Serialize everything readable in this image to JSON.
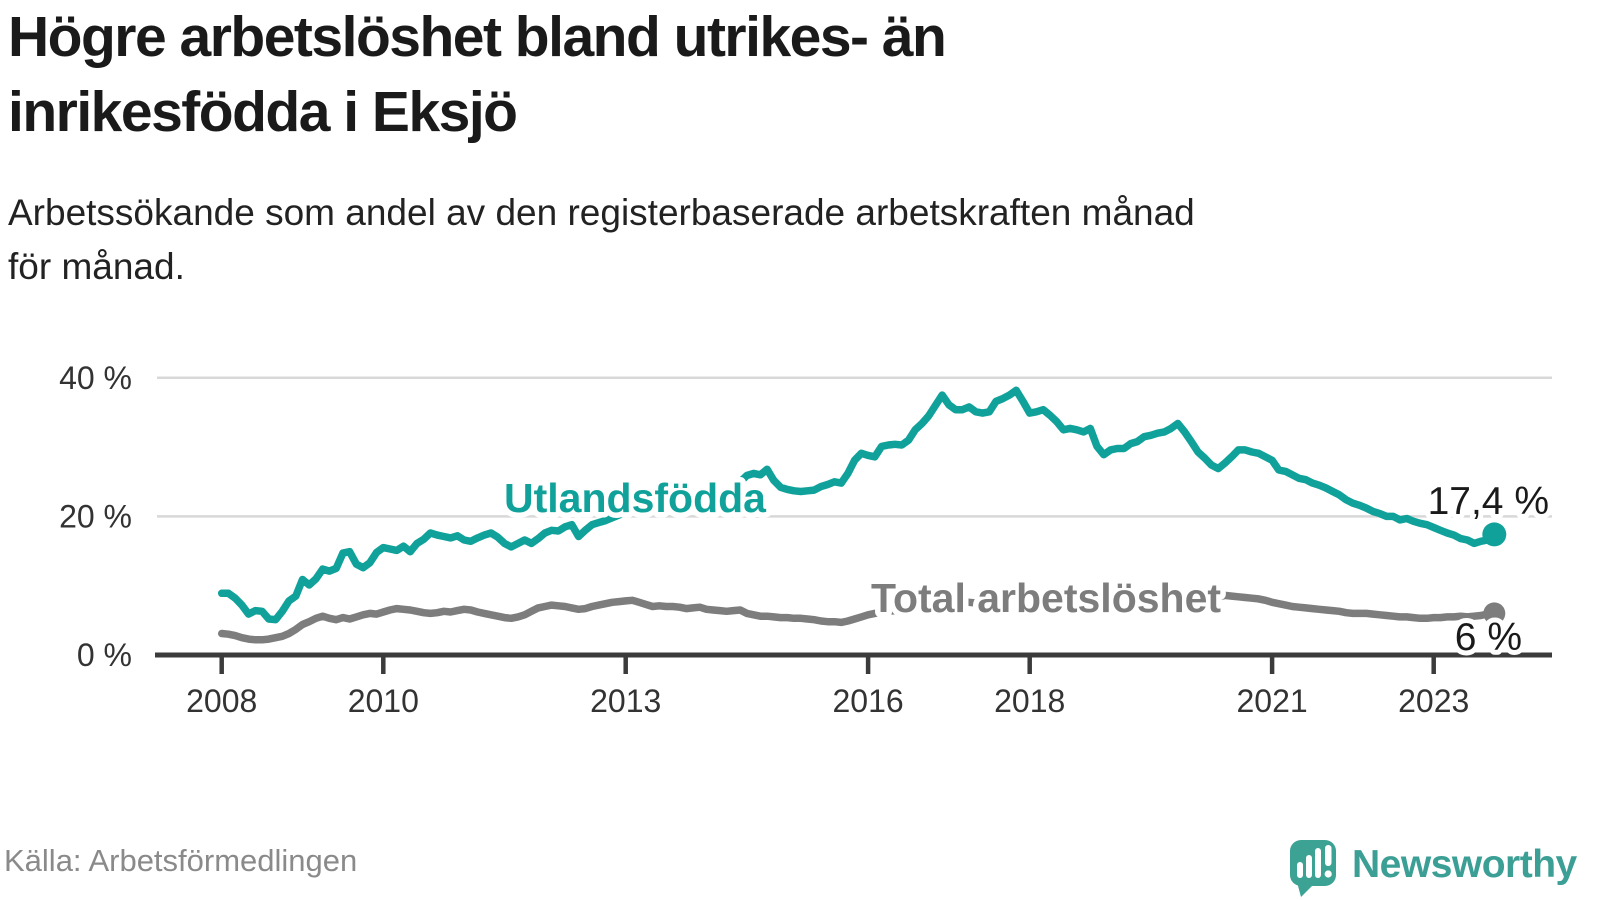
{
  "header": {
    "title": [
      "Högre arbetslöshet bland utrikes- än",
      "inrikesfödda i Eksjö"
    ],
    "subtitle": [
      "Arbetssökande som andel av den registerbaserade arbetskraften månad",
      "för månad."
    ]
  },
  "footer": {
    "source": "Källa: Arbetsförmedlingen",
    "brand": "Newsworthy"
  },
  "colors": {
    "accent_teal": "#10a29a",
    "line_gray": "#7d7d7d",
    "axis": "#3b3b3b",
    "grid": "#d8d8d8",
    "logo_teal": "#3c9f95"
  },
  "chart_data": {
    "type": "line",
    "title": "Högre arbetslöshet bland utrikes- än inrikesfödda i Eksjö",
    "subtitle": "Arbetssökande som andel av den registerbaserade arbetskraften månad för månad.",
    "xlabel": "",
    "ylabel": "",
    "x_start": "2008-01",
    "x_end": "2023-10",
    "x_interval": "monthly",
    "x_ticks": [
      2008,
      2010,
      2013,
      2016,
      2018,
      2021,
      2023
    ],
    "y_ticks": [
      {
        "value": 0,
        "label": "0 %"
      },
      {
        "value": 20,
        "label": "20 %"
      },
      {
        "value": 40,
        "label": "40 %"
      }
    ],
    "ylim": [
      0,
      42
    ],
    "grid": "horizontal",
    "legend_position": "inline-labels",
    "series": [
      {
        "name": "Utlandsfödda",
        "color": "#10a29a",
        "end_label": "17,4 %",
        "values": [
          8.9,
          8.9,
          8.2,
          7.2,
          5.9,
          6.4,
          6.3,
          5.2,
          5.1,
          6.3,
          7.8,
          8.5,
          10.9,
          10.1,
          11.0,
          12.4,
          12.1,
          12.5,
          14.7,
          14.9,
          13.1,
          12.6,
          13.3,
          14.8,
          15.5,
          15.3,
          15.1,
          15.7,
          14.9,
          16.1,
          16.7,
          17.6,
          17.3,
          17.1,
          16.9,
          17.2,
          16.6,
          16.4,
          16.9,
          17.3,
          17.6,
          17.0,
          16.1,
          15.6,
          16.1,
          16.6,
          16.1,
          16.8,
          17.6,
          18.0,
          17.9,
          18.5,
          18.8,
          17.1,
          18.0,
          18.8,
          19.1,
          19.4,
          19.8,
          20.2,
          20.6,
          21.0,
          21.3,
          21.1,
          20.8,
          21.2,
          21.5,
          21.3,
          21.6,
          21.9,
          22.1,
          22.4,
          22.6,
          22.9,
          23.2,
          23.6,
          24.2,
          25.0,
          25.9,
          26.2,
          26.0,
          26.8,
          25.2,
          24.2,
          23.9,
          23.7,
          23.6,
          23.7,
          23.8,
          24.3,
          24.6,
          25.0,
          24.8,
          26.2,
          28.1,
          29.1,
          28.8,
          28.6,
          30.1,
          30.3,
          30.4,
          30.3,
          31.0,
          32.5,
          33.4,
          34.5,
          36.0,
          37.5,
          36.1,
          35.4,
          35.4,
          35.8,
          35.1,
          34.9,
          35.1,
          36.6,
          37.0,
          37.5,
          38.2,
          36.6,
          34.9,
          35.1,
          35.4,
          34.6,
          33.7,
          32.5,
          32.7,
          32.5,
          32.2,
          32.7,
          30.1,
          28.9,
          29.6,
          29.8,
          29.8,
          30.5,
          30.8,
          31.5,
          31.7,
          32.0,
          32.2,
          32.7,
          33.4,
          32.2,
          30.8,
          29.3,
          28.4,
          27.4,
          26.9,
          27.7,
          28.6,
          29.6,
          29.6,
          29.3,
          29.1,
          28.6,
          28.1,
          26.7,
          26.5,
          26.0,
          25.5,
          25.3,
          24.8,
          24.5,
          24.1,
          23.6,
          23.1,
          22.4,
          21.9,
          21.6,
          21.2,
          20.7,
          20.4,
          20.0,
          20.0,
          19.5,
          19.7,
          19.3,
          19.0,
          18.8,
          18.4,
          18.0,
          17.6,
          17.3,
          16.8,
          16.6,
          16.1,
          16.4,
          16.6,
          17.4
        ]
      },
      {
        "name": "Total arbetslöshet",
        "color": "#7d7d7d",
        "end_label": "6 %",
        "values": [
          3.1,
          3.0,
          2.8,
          2.5,
          2.3,
          2.2,
          2.2,
          2.3,
          2.5,
          2.7,
          3.1,
          3.7,
          4.4,
          4.8,
          5.3,
          5.6,
          5.3,
          5.1,
          5.4,
          5.2,
          5.5,
          5.8,
          6.0,
          5.9,
          6.2,
          6.5,
          6.7,
          6.6,
          6.5,
          6.3,
          6.1,
          6.0,
          6.1,
          6.3,
          6.2,
          6.4,
          6.6,
          6.5,
          6.2,
          6.0,
          5.8,
          5.6,
          5.4,
          5.3,
          5.5,
          5.8,
          6.3,
          6.8,
          7.0,
          7.2,
          7.1,
          7.0,
          6.8,
          6.6,
          6.7,
          7.0,
          7.2,
          7.4,
          7.6,
          7.7,
          7.8,
          7.9,
          7.6,
          7.3,
          7.0,
          7.1,
          7.0,
          7.0,
          6.9,
          6.7,
          6.8,
          6.9,
          6.6,
          6.5,
          6.4,
          6.3,
          6.4,
          6.5,
          6.0,
          5.8,
          5.6,
          5.6,
          5.5,
          5.4,
          5.4,
          5.3,
          5.3,
          5.2,
          5.1,
          4.9,
          4.8,
          4.8,
          4.7,
          4.9,
          5.2,
          5.5,
          5.8,
          6.0,
          6.2,
          6.3,
          6.4,
          6.5,
          6.7,
          6.9,
          7.0,
          7.2,
          7.3,
          7.5,
          7.6,
          7.7,
          7.7,
          7.6,
          7.5,
          7.4,
          7.5,
          7.6,
          7.7,
          7.8,
          7.9,
          7.8,
          7.7,
          7.6,
          7.5,
          7.4,
          7.2,
          7.1,
          7.0,
          7.0,
          6.9,
          6.9,
          6.8,
          6.8,
          6.9,
          7.0,
          7.0,
          7.1,
          7.1,
          7.2,
          7.3,
          7.3,
          7.4,
          7.5,
          7.6,
          7.5,
          7.4,
          7.3,
          7.5,
          8.0,
          8.4,
          8.6,
          8.5,
          8.4,
          8.3,
          8.2,
          8.1,
          7.9,
          7.6,
          7.4,
          7.2,
          7.0,
          6.9,
          6.8,
          6.7,
          6.6,
          6.5,
          6.4,
          6.3,
          6.1,
          6.0,
          6.0,
          6.0,
          5.9,
          5.8,
          5.7,
          5.6,
          5.5,
          5.5,
          5.4,
          5.3,
          5.3,
          5.4,
          5.4,
          5.5,
          5.5,
          5.6,
          5.5,
          5.6,
          5.7,
          5.9,
          6.0
        ]
      }
    ]
  }
}
